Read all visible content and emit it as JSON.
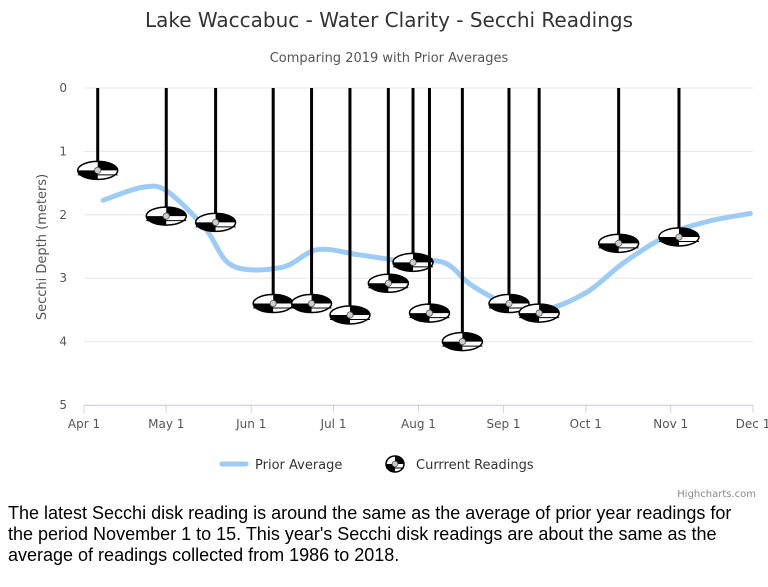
{
  "chart_data": {
    "type": "line",
    "title": "Lake Waccabuc - Water Clarity - Secchi Readings",
    "subtitle": "Comparing 2019 with Prior Averages",
    "ylabel": "Secchi Depth (meters)",
    "xlabel": "",
    "ylim": [
      0,
      5
    ],
    "y_reversed": true,
    "y_ticks": [
      "0",
      "1",
      "2",
      "3",
      "4",
      "5"
    ],
    "x_range_day_of_year": [
      91,
      335
    ],
    "x_tick_labels": [
      {
        "label": "Apr 1",
        "day": 91
      },
      {
        "label": "May 1",
        "day": 121
      },
      {
        "label": "Jun 1",
        "day": 152
      },
      {
        "label": "Jul 1",
        "day": 182
      },
      {
        "label": "Aug 1",
        "day": 213
      },
      {
        "label": "Sep 1",
        "day": 244
      },
      {
        "label": "Oct 1",
        "day": 274
      },
      {
        "label": "Nov 1",
        "day": 305
      },
      {
        "label": "Dec 1",
        "day": 335
      }
    ],
    "grid": true,
    "legend_position": "bottom-center",
    "series": [
      {
        "name": "Prior Average",
        "type": "spline",
        "color": "#9ccbf5",
        "points": [
          {
            "date": "Apr 8",
            "day": 98,
            "value": 1.77
          },
          {
            "date": "Apr 22",
            "day": 112,
            "value": 1.57
          },
          {
            "date": "May 1",
            "day": 121,
            "value": 1.62
          },
          {
            "date": "May 15",
            "day": 135,
            "value": 2.2
          },
          {
            "date": "May 25",
            "day": 145,
            "value": 2.8
          },
          {
            "date": "Jun 12",
            "day": 163,
            "value": 2.83
          },
          {
            "date": "Jun 25",
            "day": 176,
            "value": 2.55
          },
          {
            "date": "Jul 10",
            "day": 191,
            "value": 2.63
          },
          {
            "date": "Jul 25",
            "day": 206,
            "value": 2.72
          },
          {
            "date": "Aug 10",
            "day": 222,
            "value": 2.75
          },
          {
            "date": "Aug 20",
            "day": 232,
            "value": 3.1
          },
          {
            "date": "Sep 1",
            "day": 244,
            "value": 3.38
          },
          {
            "date": "Sep 15",
            "day": 258,
            "value": 3.5
          },
          {
            "date": "Oct 1",
            "day": 274,
            "value": 3.23
          },
          {
            "date": "Oct 15",
            "day": 288,
            "value": 2.75
          },
          {
            "date": "Nov 1",
            "day": 305,
            "value": 2.3
          },
          {
            "date": "Nov 15",
            "day": 319,
            "value": 2.1
          },
          {
            "date": "Nov 30",
            "day": 334,
            "value": 1.98
          }
        ]
      },
      {
        "name": "Currrent Readings",
        "type": "scatter",
        "color": "#000000",
        "points": [
          {
            "date": "Apr 6",
            "day": 96,
            "value": 1.3
          },
          {
            "date": "May 1",
            "day": 121,
            "value": 2.02
          },
          {
            "date": "May 19",
            "day": 139,
            "value": 2.12
          },
          {
            "date": "Jun 9",
            "day": 160,
            "value": 3.4
          },
          {
            "date": "Jun 23",
            "day": 174,
            "value": 3.4
          },
          {
            "date": "Jul 7",
            "day": 188,
            "value": 3.58
          },
          {
            "date": "Jul 21",
            "day": 202,
            "value": 3.08
          },
          {
            "date": "Jul 30",
            "day": 211,
            "value": 2.75
          },
          {
            "date": "Aug 5",
            "day": 217,
            "value": 3.55
          },
          {
            "date": "Aug 17",
            "day": 229,
            "value": 4.0
          },
          {
            "date": "Sep 3",
            "day": 246,
            "value": 3.4
          },
          {
            "date": "Sep 14",
            "day": 257,
            "value": 3.55
          },
          {
            "date": "Oct 13",
            "day": 286,
            "value": 2.45
          },
          {
            "date": "Nov 4",
            "day": 308,
            "value": 2.35
          }
        ]
      }
    ],
    "credits": "Highcharts.com"
  },
  "caption": "The latest Secchi disk reading is around the same as the average of prior year readings for the period November 1 to 15. This year's Secchi disk readings are about the same as the average of readings collected from 1986 to 2018."
}
